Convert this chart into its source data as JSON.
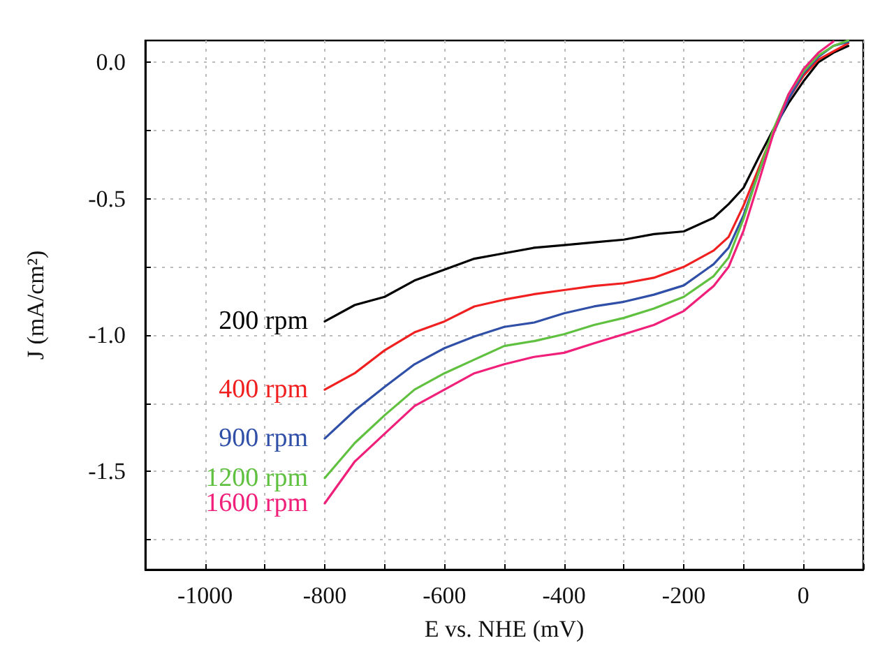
{
  "chart_data": {
    "type": "line",
    "xlabel": "E vs. NHE (mV)",
    "ylabel": "J (mA/cm²)",
    "x": [
      -800,
      -750,
      -700,
      -650,
      -600,
      -550,
      -500,
      -450,
      -400,
      -350,
      -300,
      -250,
      -200,
      -150,
      -125,
      -100,
      -75,
      -50,
      -25,
      0,
      25,
      50,
      75
    ],
    "series": [
      {
        "name": "200 rpm",
        "color": "#000000",
        "values": [
          -0.95,
          -0.89,
          -0.86,
          -0.8,
          -0.76,
          -0.72,
          -0.7,
          -0.68,
          -0.67,
          -0.66,
          -0.65,
          -0.63,
          -0.62,
          -0.57,
          -0.52,
          -0.46,
          -0.35,
          -0.245,
          -0.15,
          -0.07,
          0,
          0.035,
          0.06
        ]
      },
      {
        "name": "400 rpm",
        "color": "#f02020",
        "values": [
          -1.2,
          -1.14,
          -1.056,
          -0.99,
          -0.95,
          -0.895,
          -0.87,
          -0.85,
          -0.835,
          -0.82,
          -0.81,
          -0.79,
          -0.75,
          -0.69,
          -0.64,
          -0.525,
          -0.39,
          -0.255,
          -0.135,
          -0.05,
          0.01,
          0.04,
          0.07
        ]
      },
      {
        "name": "900 rpm",
        "color": "#3050a8",
        "values": [
          -1.379,
          -1.277,
          -1.19,
          -1.107,
          -1.048,
          -1.005,
          -0.97,
          -0.954,
          -0.92,
          -0.895,
          -0.878,
          -0.852,
          -0.818,
          -0.74,
          -0.68,
          -0.56,
          -0.405,
          -0.26,
          -0.135,
          -0.04,
          0.02,
          0.06,
          0.075
        ]
      },
      {
        "name": "1200 rpm",
        "color": "#60c040",
        "values": [
          -1.524,
          -1.396,
          -1.294,
          -1.2,
          -1.14,
          -1.09,
          -1.04,
          -1.022,
          -0.997,
          -0.963,
          -0.937,
          -0.903,
          -0.86,
          -0.784,
          -0.716,
          -0.574,
          -0.405,
          -0.245,
          -0.118,
          -0.034,
          0.025,
          0.06,
          0.08
        ]
      },
      {
        "name": "1600 rpm",
        "color": "#f0207a",
        "values": [
          -1.617,
          -1.464,
          -1.362,
          -1.26,
          -1.2,
          -1.14,
          -1.107,
          -1.08,
          -1.065,
          -1.03,
          -0.997,
          -0.963,
          -0.912,
          -0.82,
          -0.75,
          -0.617,
          -0.44,
          -0.26,
          -0.118,
          -0.025,
          0.035,
          0.076,
          null
        ]
      }
    ],
    "xlim": [
      -1100,
      100
    ],
    "xticks": [
      -1000,
      {
        "value": -900,
        "label": null
      },
      -800,
      {
        "value": -700,
        "label": null
      },
      -600,
      {
        "value": -500,
        "label": null
      },
      -400,
      {
        "value": -300,
        "label": null
      },
      -200,
      {
        "value": -100,
        "label": null
      },
      0,
      {
        "value": 100,
        "label": null
      }
    ],
    "ylim": [
      -1.86,
      0.08
    ],
    "yticks": [
      {
        "value": -1.75,
        "label": null
      },
      {
        "value": -1.5,
        "label": "-1.5"
      },
      {
        "value": -1.25,
        "label": null
      },
      {
        "value": -1.0,
        "label": "-1.0"
      },
      {
        "value": -0.75,
        "label": null
      },
      {
        "value": -0.5,
        "label": "-0.5"
      },
      {
        "value": -0.25,
        "label": null
      },
      {
        "value": 0,
        "label": "0.0"
      }
    ],
    "grid": true,
    "legend": false,
    "marker": "none",
    "line_style": "solid"
  }
}
